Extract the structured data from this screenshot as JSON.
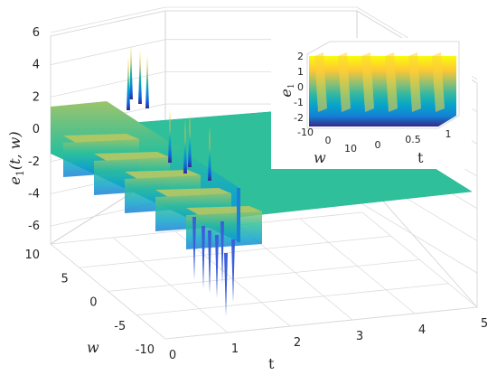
{
  "chart_data": [
    {
      "type": "surface3d",
      "title": "",
      "xlabel": "t",
      "ylabel": "w",
      "zlabel": "e_1(t,w)",
      "zlabel_parts": {
        "base": "e",
        "sub": "1",
        "args": "(t, w)"
      },
      "xlim": [
        0,
        5
      ],
      "ylim": [
        -10,
        10
      ],
      "zlim": [
        -7,
        6
      ],
      "x_ticks": [
        "0",
        "1",
        "2",
        "3",
        "4",
        "5"
      ],
      "y_ticks": [
        "-10",
        "-5",
        "0",
        "5",
        "10"
      ],
      "z_ticks": [
        "-6",
        "-4",
        "-2",
        "0",
        "2",
        "4",
        "6"
      ],
      "grid": true,
      "colormap": "parula",
      "description_values": {
        "transient_interval_t": [
          0,
          1
        ],
        "oscillation_amplitude": 2,
        "spike_max": 5.5,
        "spike_min": -7,
        "steady_state_value_after_t1": 0,
        "oscillation_bands_in_w": 5
      }
    },
    {
      "type": "surface3d",
      "role": "inset",
      "xlabel": "t",
      "ylabel": "w",
      "zlabel": "e_1",
      "zlabel_parts": {
        "base": "e",
        "sub": "1"
      },
      "xlim": [
        0,
        1
      ],
      "ylim": [
        -10,
        10
      ],
      "zlim": [
        -2,
        2
      ],
      "x_ticks": [
        "0",
        "0.5",
        "1"
      ],
      "y_ticks": [
        "-10",
        "0",
        "10"
      ],
      "z_ticks": [
        "-2",
        "-1",
        "0",
        "1",
        "2"
      ],
      "grid": true,
      "colormap": "parula",
      "description_values": {
        "ridges_in_w": 6,
        "value_range": [
          -2,
          2
        ]
      }
    }
  ],
  "colors": {
    "flat_surface": "#2fbf9a",
    "parula": [
      "#352a87",
      "#0f5cdd",
      "#1481d6",
      "#06a4ca",
      "#2eb7a4",
      "#87bf77",
      "#d1bb59",
      "#fec832",
      "#f9fb0e"
    ]
  }
}
